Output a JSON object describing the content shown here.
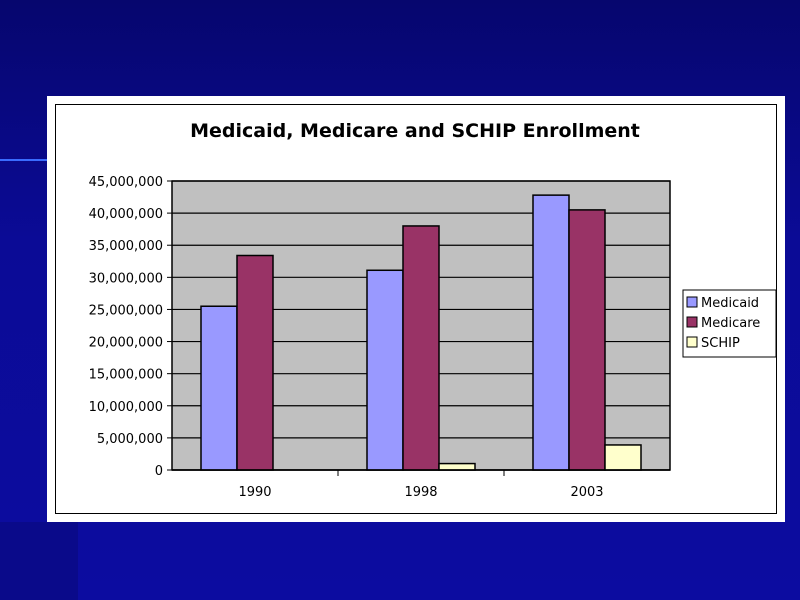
{
  "chart_data": {
    "type": "bar",
    "title": "Medicaid, Medicare and SCHIP Enrollment",
    "xlabel": "",
    "ylabel": "",
    "categories": [
      "1990",
      "1998",
      "2003"
    ],
    "series": [
      {
        "name": "Medicaid",
        "color": "#9999ff",
        "values": [
          25500000,
          31100000,
          42800000
        ]
      },
      {
        "name": "Medicare",
        "color": "#993366",
        "values": [
          33400000,
          38000000,
          40500000
        ]
      },
      {
        "name": "SCHIP",
        "color": "#ffffcc",
        "values": [
          0,
          1000000,
          3900000
        ]
      }
    ],
    "ylim": [
      0,
      45000000
    ],
    "yticks": [
      "0",
      "5,000,000",
      "10,000,000",
      "15,000,000",
      "20,000,000",
      "25,000,000",
      "30,000,000",
      "35,000,000",
      "40,000,000",
      "45,000,000"
    ],
    "grid": true,
    "legend": "right",
    "plot_bg": "#c0c0c0"
  }
}
